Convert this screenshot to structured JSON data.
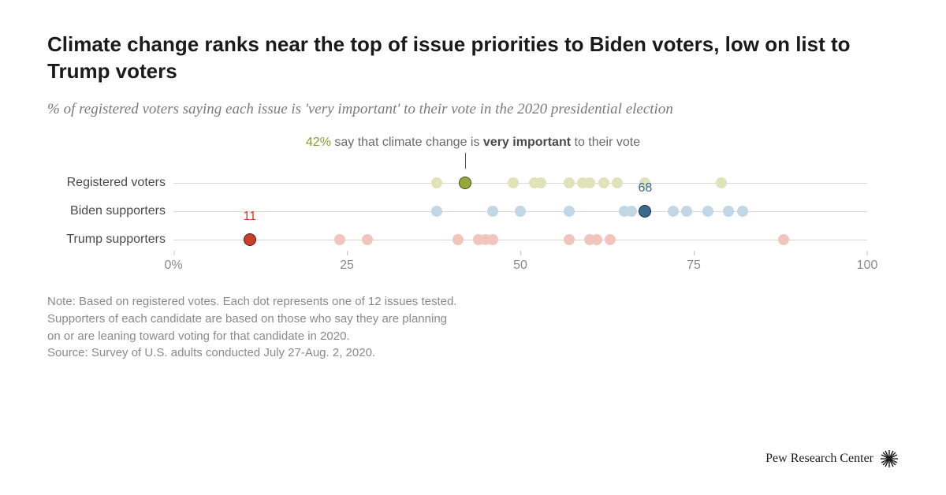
{
  "title": "Climate change ranks near the top of issue priorities to Biden voters, low on list to Trump voters",
  "subtitle": "% of registered voters saying each issue is 'very important' to their vote in the 2020 presidential election",
  "annotation": {
    "pct": "42%",
    "mid": " say that climate change is ",
    "strong": "very important",
    "tail": " to their vote"
  },
  "chart": {
    "type": "dot-strip",
    "xlim": [
      0,
      100
    ],
    "xticks": [
      0,
      25,
      50,
      75,
      100
    ],
    "xtick_labels": [
      "0%",
      "25",
      "50",
      "75",
      "100"
    ],
    "dot_radius": 7,
    "highlight_radius": 8,
    "grid_color": "#d8d8d8",
    "background_color": "#ffffff",
    "label_fontsize": 16,
    "annotation_fontsize": 16,
    "title_fontsize": 26,
    "subtitle_fontsize": 19,
    "note_fontsize": 15,
    "rows": [
      {
        "label": "Registered voters",
        "color_light": "#dfe3b9",
        "color_highlight": "#97a83f",
        "label_color": "#8a9a3a",
        "values": [
          38,
          42,
          49,
          52,
          53,
          57,
          59,
          60,
          62,
          64,
          68,
          79
        ],
        "highlight_value": 42,
        "highlight_label": ""
      },
      {
        "label": "Biden supporters",
        "color_light": "#c2d6e4",
        "color_highlight": "#3a6a8a",
        "label_color": "#3a6a8a",
        "values": [
          38,
          46,
          50,
          57,
          65,
          66,
          68,
          72,
          74,
          77,
          80,
          82
        ],
        "highlight_value": 68,
        "highlight_label": "68"
      },
      {
        "label": "Trump supporters",
        "color_light": "#f1c5bd",
        "color_highlight": "#c6402a",
        "label_color": "#c6402a",
        "values": [
          11,
          24,
          28,
          41,
          44,
          45,
          46,
          57,
          60,
          61,
          63,
          88
        ],
        "highlight_value": 11,
        "highlight_label": "11"
      }
    ]
  },
  "note_lines": [
    "Note: Based on registered votes. Each dot represents one of 12 issues tested.",
    "Supporters of each candidate are based on those who say they are planning",
    "on or are leaning toward voting for that candidate in 2020.",
    "Source: Survey of U.S. adults conducted July 27-Aug. 2, 2020."
  ],
  "footer": "Pew Research Center"
}
